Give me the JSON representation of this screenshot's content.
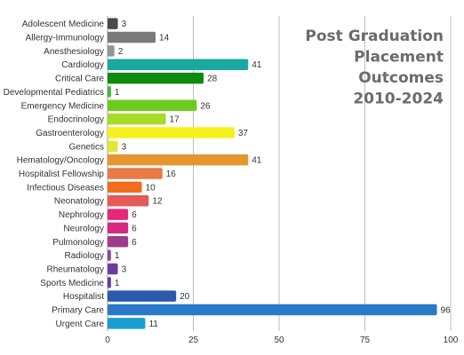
{
  "chart_data": {
    "type": "bar",
    "orientation": "horizontal",
    "title_lines": [
      "Post Graduation",
      "Placement",
      "Outcomes",
      "2010-2024"
    ],
    "xlabel": "",
    "ylabel": "",
    "xlim": [
      0,
      100
    ],
    "xticks": [
      0,
      25,
      50,
      75,
      100
    ],
    "grid": "vertical",
    "legend": "none",
    "categories": [
      "Adolescent Medicine",
      "Allergy-Immunology",
      "Anesthesiology",
      "Cardiology",
      "Critical Care",
      "Developmental Pediatrics",
      "Emergency Medicine",
      "Endocrinology",
      "Gastroenterology",
      "Genetics",
      "Hematology/Oncology",
      "Hospitalist Fellowship",
      "Infectious Diseases",
      "Neonatology",
      "Nephrology",
      "Neurology",
      "Pulmonology",
      "Radiology",
      "Rheumatology",
      "Sports Medicine",
      "Hospitalist",
      "Primary Care",
      "Urgent Care"
    ],
    "values": [
      3,
      14,
      2,
      41,
      28,
      1,
      26,
      17,
      37,
      3,
      41,
      16,
      10,
      12,
      6,
      6,
      6,
      1,
      3,
      1,
      20,
      96,
      11
    ],
    "colors": [
      "#4a4a4a",
      "#7a7a7a",
      "#8a9a9a",
      "#1aa8a0",
      "#0f8a0f",
      "#3cb83c",
      "#6ccd1e",
      "#a6db28",
      "#f5f01e",
      "#e6e632",
      "#e6962e",
      "#e87a46",
      "#f06d1e",
      "#e45a5a",
      "#e6287a",
      "#d42882",
      "#9e3c8c",
      "#8a4a9e",
      "#6e3ca0",
      "#5a3caa",
      "#2a5aaa",
      "#2a7ac8",
      "#1a9ed2"
    ]
  }
}
